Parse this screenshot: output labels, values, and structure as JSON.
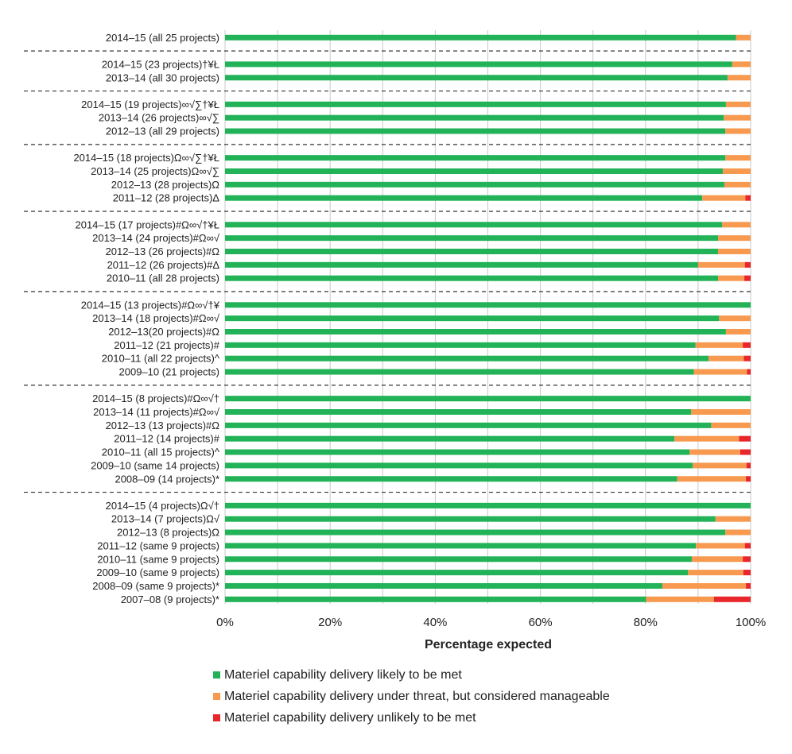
{
  "chart_data": {
    "type": "bar",
    "orientation": "horizontal",
    "stacked": true,
    "xlabel": "Percentage expected",
    "xlim": [
      0,
      100
    ],
    "xticks": [
      "0%",
      "20%",
      "40%",
      "60%",
      "80%",
      "100%"
    ],
    "grid": true,
    "legend_position": "bottom",
    "colors": {
      "likely": "#22b358",
      "threat": "#f79a4f",
      "unlikely": "#e8262b"
    },
    "legend": [
      {
        "key": "likely",
        "label": "Materiel capability delivery likely to be met"
      },
      {
        "key": "threat",
        "label": "Materiel capability delivery under threat, but considered manageable"
      },
      {
        "key": "unlikely",
        "label": "Materiel capability delivery unlikely to be met"
      }
    ],
    "groups": [
      [
        {
          "label": "2014–15 (all 25 projects)",
          "likely": 97.2,
          "threat": 2.8,
          "unlikely": 0
        }
      ],
      [
        {
          "label": "2014–15 (23 projects)†¥Ł",
          "likely": 96.5,
          "threat": 3.5,
          "unlikely": 0
        },
        {
          "label": "2013–14 (all 30 projects)",
          "likely": 95.6,
          "threat": 4.4,
          "unlikely": 0
        }
      ],
      [
        {
          "label": "2014–15 (19 projects)∞√∑†¥Ł",
          "likely": 95.3,
          "threat": 4.7,
          "unlikely": 0
        },
        {
          "label": "2013–14 (26 projects)∞√∑",
          "likely": 94.9,
          "threat": 5.1,
          "unlikely": 0
        },
        {
          "label": "2012–13 (all 29 projects)",
          "likely": 95.2,
          "threat": 4.8,
          "unlikely": 0
        }
      ],
      [
        {
          "label": "2014–15 (18 projects)Ω∞√∑†¥Ł",
          "likely": 95.2,
          "threat": 4.8,
          "unlikely": 0
        },
        {
          "label": "2013–14 (25 projects)Ω∞√∑",
          "likely": 94.7,
          "threat": 5.3,
          "unlikely": 0
        },
        {
          "label": "2012–13 (28 projects)Ω",
          "likely": 95.0,
          "threat": 5.0,
          "unlikely": 0
        },
        {
          "label": "2011–12 (28 projects)Δ",
          "likely": 90.8,
          "threat": 8.2,
          "unlikely": 1.0
        }
      ],
      [
        {
          "label": "2014–15 (17 projects)#Ω∞√†¥Ł",
          "likely": 94.6,
          "threat": 5.4,
          "unlikely": 0
        },
        {
          "label": "2013–14 (24 projects)#Ω∞√",
          "likely": 93.8,
          "threat": 6.2,
          "unlikely": 0
        },
        {
          "label": "2012–13 (26 projects)#Ω",
          "likely": 93.8,
          "threat": 6.2,
          "unlikely": 0
        },
        {
          "label": "2011–12 (26 projects)#Δ",
          "likely": 90.0,
          "threat": 8.9,
          "unlikely": 1.1
        },
        {
          "label": "2010–11 (all 28 projects)",
          "likely": 93.8,
          "threat": 5.0,
          "unlikely": 1.2
        }
      ],
      [
        {
          "label": "2014–15 (13 projects)#Ω∞√†¥",
          "likely": 100,
          "threat": 0,
          "unlikely": 0
        },
        {
          "label": "2013–14 (18 projects)#Ω∞√",
          "likely": 94.0,
          "threat": 6.0,
          "unlikely": 0
        },
        {
          "label": "2012–13(20 projects)#Ω",
          "likely": 95.3,
          "threat": 4.7,
          "unlikely": 0
        },
        {
          "label": "2011–12 (21 projects)#",
          "likely": 89.5,
          "threat": 9.0,
          "unlikely": 1.5
        },
        {
          "label": "2010–11 (all 22 projects)^",
          "likely": 92.0,
          "threat": 6.7,
          "unlikely": 1.3
        },
        {
          "label": "2009–10 (21 projects)",
          "likely": 89.2,
          "threat": 10.1,
          "unlikely": 0.7
        }
      ],
      [
        {
          "label": "2014–15 (8 projects)#Ω∞√†",
          "likely": 100,
          "threat": 0,
          "unlikely": 0
        },
        {
          "label": "2013–14 (11 projects)#Ω∞√",
          "likely": 88.7,
          "threat": 11.3,
          "unlikely": 0
        },
        {
          "label": "2012–13 (13 projects)#Ω",
          "likely": 92.5,
          "threat": 7.5,
          "unlikely": 0
        },
        {
          "label": "2011–12 (14 projects)#",
          "likely": 85.5,
          "threat": 12.3,
          "unlikely": 2.2
        },
        {
          "label": "2010–11 (all 15 projects)^",
          "likely": 88.4,
          "threat": 9.6,
          "unlikely": 2.0
        },
        {
          "label": "2009–10 (same 14 projects)",
          "likely": 89.0,
          "threat": 10.2,
          "unlikely": 0.8
        },
        {
          "label": "2008–09 (14 projects)*",
          "likely": 86.0,
          "threat": 13.1,
          "unlikely": 0.9
        }
      ],
      [
        {
          "label": "2014–15 (4 projects)Ω√†",
          "likely": 100,
          "threat": 0,
          "unlikely": 0
        },
        {
          "label": "2013–14 (7 projects)Ω√",
          "likely": 93.3,
          "threat": 6.7,
          "unlikely": 0
        },
        {
          "label": "2012–13 (8 projects)Ω",
          "likely": 95.2,
          "threat": 4.8,
          "unlikely": 0
        },
        {
          "label": "2011–12 (same 9 projects)",
          "likely": 89.6,
          "threat": 9.3,
          "unlikely": 1.1
        },
        {
          "label": "2010–11 (same 9 projects)",
          "likely": 88.8,
          "threat": 9.7,
          "unlikely": 1.5
        },
        {
          "label": "2009–10 (same 9 projects)",
          "likely": 88.1,
          "threat": 10.5,
          "unlikely": 1.4
        },
        {
          "label": "2008–09 (same 9 projects)*",
          "likely": 83.2,
          "threat": 15.9,
          "unlikely": 0.9
        },
        {
          "label": "2007–08 (9 projects)*",
          "likely": 80.1,
          "threat": 12.9,
          "unlikely": 7.0
        }
      ]
    ]
  }
}
